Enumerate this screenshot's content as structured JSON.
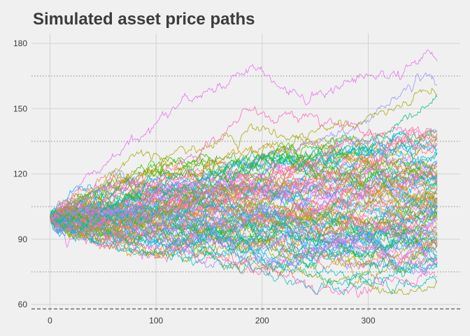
{
  "chart_data": {
    "type": "line",
    "title": "Simulated asset price paths",
    "xlabel": "",
    "ylabel": "",
    "xlim": [
      0,
      365
    ],
    "ylim": [
      58,
      182
    ],
    "x_ticks": [
      0,
      100,
      200,
      300
    ],
    "y_ticks": [
      60,
      90,
      120,
      150,
      180
    ],
    "grid": true,
    "legend": "none",
    "reference_lines": {
      "dashed": [
        58
      ],
      "dotted": [
        75,
        105,
        135,
        165
      ]
    },
    "n_paths": 100,
    "n_steps": 365,
    "start_value": 100,
    "palette": [
      "#F8766D",
      "#D89000",
      "#A3A500",
      "#39B600",
      "#00BF7D",
      "#00BFC4",
      "#00B0F6",
      "#9590FF",
      "#E76BF3",
      "#FF62BC"
    ],
    "highlight_series": [
      {
        "name": "",
        "color": "#E76BF3",
        "keypoints": [
          [
            0,
            100
          ],
          [
            20,
            106
          ],
          [
            40,
            118
          ],
          [
            60,
            128
          ],
          [
            80,
            136
          ],
          [
            100,
            142
          ],
          [
            120,
            150
          ],
          [
            140,
            156
          ],
          [
            160,
            160
          ],
          [
            180,
            167
          ],
          [
            190,
            171
          ],
          [
            200,
            166
          ],
          [
            220,
            160
          ],
          [
            240,
            152
          ],
          [
            260,
            157
          ],
          [
            280,
            162
          ],
          [
            300,
            166
          ],
          [
            320,
            164
          ],
          [
            340,
            170
          ],
          [
            355,
            177
          ],
          [
            365,
            172
          ]
        ]
      },
      {
        "name": "",
        "color": "#9590FF",
        "keypoints": [
          [
            0,
            100
          ],
          [
            40,
            102
          ],
          [
            80,
            106
          ],
          [
            120,
            112
          ],
          [
            160,
            120
          ],
          [
            200,
            128
          ],
          [
            240,
            134
          ],
          [
            280,
            140
          ],
          [
            300,
            146
          ],
          [
            320,
            152
          ],
          [
            340,
            160
          ],
          [
            355,
            168
          ],
          [
            365,
            162
          ]
        ]
      },
      {
        "name": "",
        "color": "#A3A500",
        "keypoints": [
          [
            0,
            100
          ],
          [
            40,
            110
          ],
          [
            60,
            122
          ],
          [
            80,
            128
          ],
          [
            120,
            130
          ],
          [
            160,
            135
          ],
          [
            200,
            140
          ],
          [
            240,
            138
          ],
          [
            280,
            142
          ],
          [
            320,
            150
          ],
          [
            345,
            156
          ],
          [
            365,
            158
          ]
        ]
      },
      {
        "name": "",
        "color": "#FF62BC",
        "keypoints": [
          [
            0,
            100
          ],
          [
            40,
            104
          ],
          [
            80,
            112
          ],
          [
            120,
            124
          ],
          [
            160,
            138
          ],
          [
            190,
            149
          ],
          [
            220,
            145
          ],
          [
            260,
            143
          ],
          [
            300,
            141
          ],
          [
            340,
            139
          ],
          [
            365,
            140
          ]
        ]
      },
      {
        "name": "",
        "color": "#00BFC4",
        "keypoints": [
          [
            0,
            100
          ],
          [
            40,
            96
          ],
          [
            80,
            90
          ],
          [
            120,
            88
          ],
          [
            160,
            84
          ],
          [
            200,
            80
          ],
          [
            240,
            74
          ],
          [
            280,
            72
          ],
          [
            300,
            70
          ],
          [
            320,
            74
          ],
          [
            340,
            78
          ],
          [
            365,
            82
          ]
        ]
      },
      {
        "name": "",
        "color": "#A3A500",
        "keypoints": [
          [
            0,
            100
          ],
          [
            40,
            94
          ],
          [
            80,
            88
          ],
          [
            120,
            84
          ],
          [
            160,
            80
          ],
          [
            200,
            78
          ],
          [
            240,
            73
          ],
          [
            280,
            70
          ],
          [
            320,
            66
          ],
          [
            345,
            64
          ],
          [
            365,
            70
          ]
        ]
      },
      {
        "name": "",
        "color": "#00BFC4",
        "keypoints": [
          [
            0,
            100
          ],
          [
            40,
            92
          ],
          [
            80,
            86
          ],
          [
            120,
            82
          ],
          [
            160,
            79
          ],
          [
            200,
            75
          ],
          [
            240,
            70
          ],
          [
            260,
            67
          ],
          [
            290,
            70
          ],
          [
            320,
            68
          ],
          [
            365,
            69
          ]
        ]
      },
      {
        "name": "",
        "color": "#FF62BC",
        "keypoints": [
          [
            0,
            100
          ],
          [
            40,
            95
          ],
          [
            80,
            89
          ],
          [
            120,
            85
          ],
          [
            160,
            81
          ],
          [
            200,
            76
          ],
          [
            240,
            70
          ],
          [
            270,
            66
          ],
          [
            300,
            68
          ],
          [
            330,
            71
          ],
          [
            365,
            75
          ]
        ]
      },
      {
        "name": "",
        "color": "#00BF7D",
        "keypoints": [
          [
            0,
            100
          ],
          [
            40,
            104
          ],
          [
            80,
            110
          ],
          [
            120,
            118
          ],
          [
            160,
            122
          ],
          [
            200,
            126
          ],
          [
            240,
            128
          ],
          [
            280,
            131
          ],
          [
            320,
            139
          ],
          [
            345,
            150
          ],
          [
            365,
            155
          ]
        ]
      }
    ],
    "envelope": {
      "upper": [
        [
          0,
          104
        ],
        [
          50,
          118
        ],
        [
          100,
          124
        ],
        [
          150,
          128
        ],
        [
          200,
          132
        ],
        [
          250,
          134
        ],
        [
          300,
          136
        ],
        [
          365,
          138
        ]
      ],
      "lower": [
        [
          0,
          96
        ],
        [
          50,
          88
        ],
        [
          100,
          84
        ],
        [
          150,
          80
        ],
        [
          200,
          77
        ],
        [
          250,
          75
        ],
        [
          300,
          76
        ],
        [
          365,
          78
        ]
      ]
    }
  }
}
